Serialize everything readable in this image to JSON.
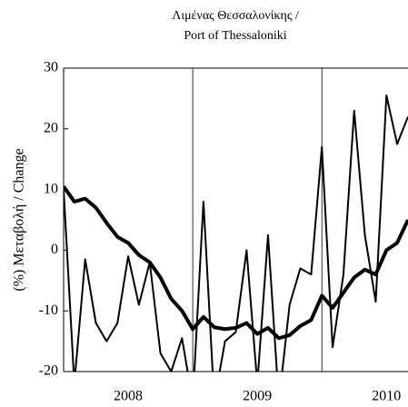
{
  "chart_data": {
    "type": "line",
    "title": "Λιμένας Θεσσαλονίκης /",
    "subtitle": "Port of Thessaloniki",
    "y_label": "(%) Μεταβολή / Change",
    "x": [
      2008,
      2008.083,
      2008.167,
      2008.25,
      2008.333,
      2008.417,
      2008.5,
      2008.583,
      2008.667,
      2008.75,
      2008.833,
      2008.917,
      2009,
      2009.083,
      2009.167,
      2009.25,
      2009.333,
      2009.417,
      2009.5,
      2009.583,
      2009.667,
      2009.75,
      2009.833,
      2009.917,
      2010,
      2010.083,
      2010.167,
      2010.25,
      2010.333,
      2010.417,
      2010.5,
      2010.583,
      2010.667
    ],
    "series": [
      {
        "color": "#000000",
        "width": 2,
        "values": [
          10,
          -22,
          -1.5,
          -12,
          -15,
          -12,
          -1,
          -9,
          -2,
          -17,
          -20,
          -14.5,
          -25,
          8,
          -25,
          -15,
          -13.5,
          0,
          -22,
          2.5,
          -25,
          -9,
          -3,
          -4,
          17,
          -16,
          -4,
          23,
          2.5,
          -8.5,
          25.5,
          17.5,
          22
        ]
      },
      {
        "color": "#000000",
        "width": 4,
        "values": [
          10.5,
          8,
          8.5,
          7,
          4.5,
          2.2,
          1.2,
          -0.8,
          -2,
          -4.5,
          -8,
          -10,
          -13,
          -11,
          -12.7,
          -13,
          -12.8,
          -12,
          -13.8,
          -12.8,
          -14.5,
          -14,
          -12.5,
          -11.5,
          -7.5,
          -9.5,
          -7,
          -4.5,
          -3.2,
          -4,
          0,
          1.2,
          5
        ]
      }
    ],
    "xlim": [
      2008,
      2010.667
    ],
    "xticks": [
      {
        "value": 2008.5,
        "label": "2008"
      },
      {
        "value": 2009.5,
        "label": "2009"
      },
      {
        "value": 2010.5,
        "label": "2010"
      }
    ],
    "xgrid": [
      2009,
      2010
    ],
    "ylim": [
      -20,
      30
    ],
    "yticks": [
      -20,
      -10,
      0,
      10,
      20,
      30
    ]
  }
}
